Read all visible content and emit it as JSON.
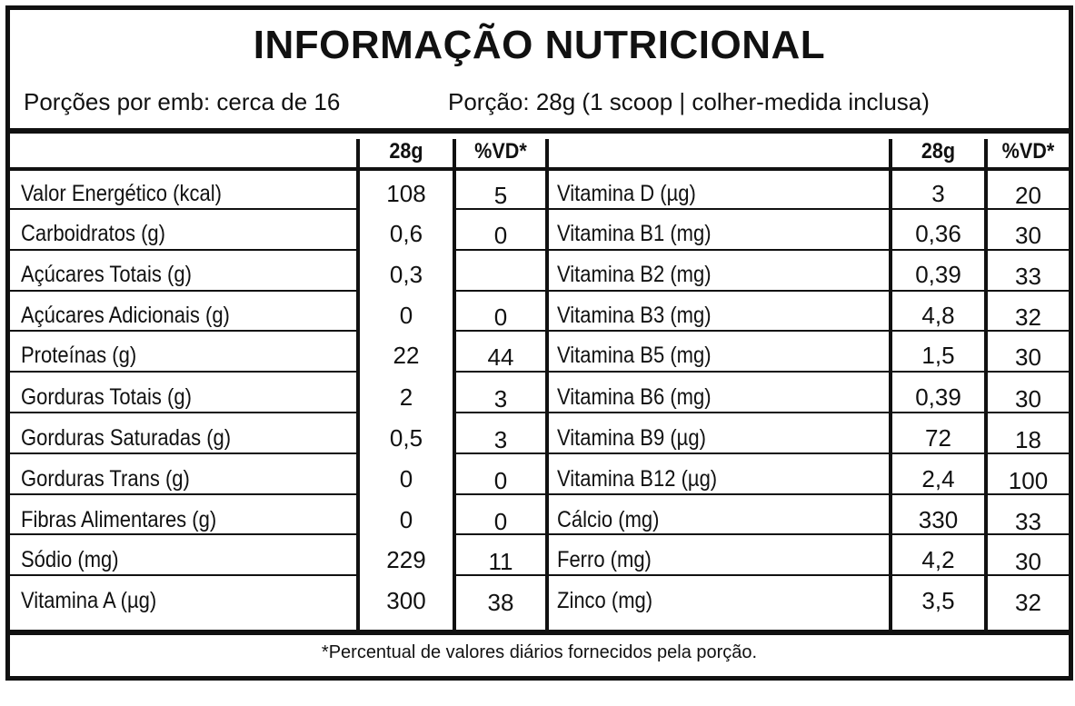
{
  "title": "INFORMAÇÃO NUTRICIONAL",
  "servings_per_package": "Porções por emb: cerca de 16",
  "serving_size": "Porção: 28g (1 scoop | colher-medida inclusa)",
  "col_headers": {
    "amount": "28g",
    "dv": "%VD*"
  },
  "left_rows": [
    {
      "name": "Valor Energético (kcal)",
      "amount": "108",
      "dv": "5"
    },
    {
      "name": "Carboidratos (g)",
      "amount": "0,6",
      "dv": "0"
    },
    {
      "name": "Açúcares Totais (g)",
      "amount": "0,3",
      "dv": ""
    },
    {
      "name": "Açúcares Adicionais (g)",
      "amount": "0",
      "dv": "0"
    },
    {
      "name": "Proteínas (g)",
      "amount": "22",
      "dv": "44"
    },
    {
      "name": "Gorduras Totais (g)",
      "amount": "2",
      "dv": "3"
    },
    {
      "name": "Gorduras Saturadas (g)",
      "amount": "0,5",
      "dv": "3"
    },
    {
      "name": "Gorduras Trans (g)",
      "amount": "0",
      "dv": "0"
    },
    {
      "name": "Fibras Alimentares (g)",
      "amount": "0",
      "dv": "0"
    },
    {
      "name": "Sódio (mg)",
      "amount": "229",
      "dv": "11"
    },
    {
      "name": "Vitamina A (µg)",
      "amount": "300",
      "dv": "38"
    }
  ],
  "right_rows": [
    {
      "name": "Vitamina D (µg)",
      "amount": "3",
      "dv": "20"
    },
    {
      "name": "Vitamina B1 (mg)",
      "amount": "0,36",
      "dv": "30"
    },
    {
      "name": "Vitamina B2 (mg)",
      "amount": "0,39",
      "dv": "33"
    },
    {
      "name": "Vitamina B3 (mg)",
      "amount": "4,8",
      "dv": "32"
    },
    {
      "name": "Vitamina B5 (mg)",
      "amount": "1,5",
      "dv": "30"
    },
    {
      "name": "Vitamina B6 (mg)",
      "amount": "0,39",
      "dv": "30"
    },
    {
      "name": "Vitamina B9 (µg)",
      "amount": "72",
      "dv": "18"
    },
    {
      "name": "Vitamina B12 (µg)",
      "amount": "2,4",
      "dv": "100"
    },
    {
      "name": "Cálcio (mg)",
      "amount": "330",
      "dv": "33"
    },
    {
      "name": "Ferro (mg)",
      "amount": "4,2",
      "dv": "30"
    },
    {
      "name": "Zinco (mg)",
      "amount": "3,5",
      "dv": "32"
    }
  ],
  "footnote": "*Percentual de valores diários fornecidos pela porção."
}
